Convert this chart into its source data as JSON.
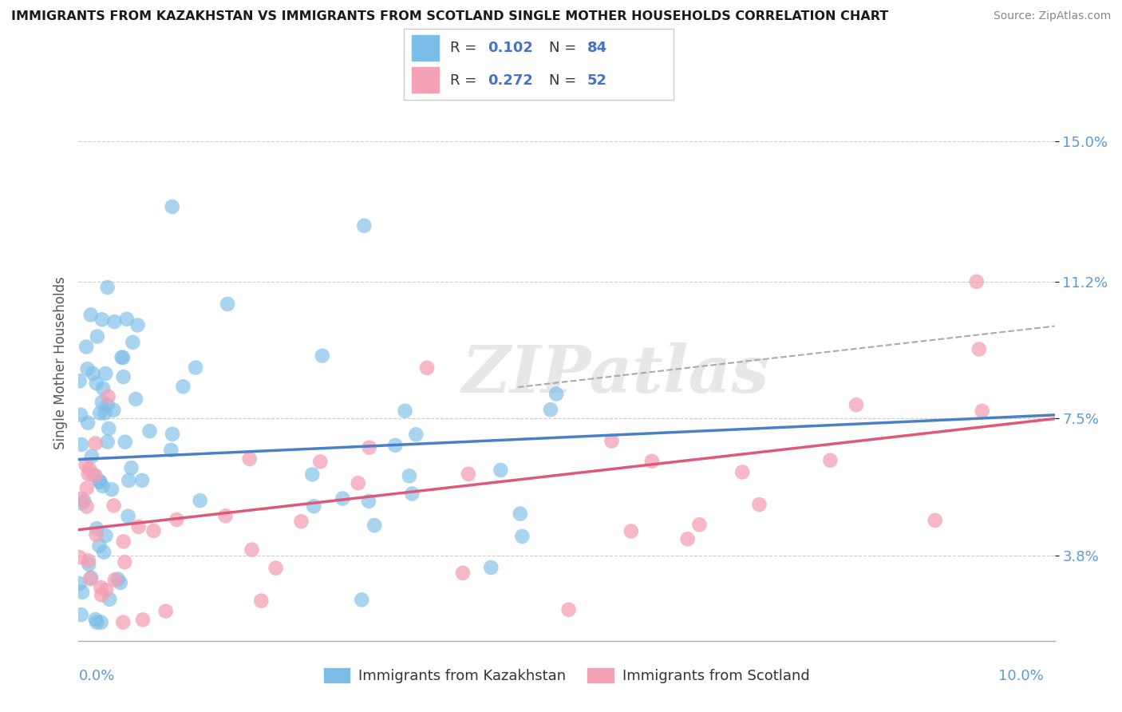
{
  "title": "IMMIGRANTS FROM KAZAKHSTAN VS IMMIGRANTS FROM SCOTLAND SINGLE MOTHER HOUSEHOLDS CORRELATION CHART",
  "source": "Source: ZipAtlas.com",
  "ylabel": "Single Mother Households",
  "y_ticks": [
    3.8,
    7.5,
    11.2,
    15.0
  ],
  "y_tick_labels": [
    "3.8%",
    "7.5%",
    "11.2%",
    "15.0%"
  ],
  "xlim": [
    0.0,
    10.0
  ],
  "ylim": [
    1.5,
    16.5
  ],
  "color_kaz": "#7BBDE8",
  "color_scot": "#F4A0B5",
  "color_kaz_line": "#4A80C8",
  "color_scot_line": "#E05878",
  "color_tick": "#5B9BD5",
  "color_text_dark": "#333333",
  "color_text_blue": "#4472C4",
  "color_text_red": "#FF0000",
  "watermark": "ZIPatlas",
  "legend_r1": "0.102",
  "legend_n1": "84",
  "legend_r2": "0.272",
  "legend_n2": "52"
}
